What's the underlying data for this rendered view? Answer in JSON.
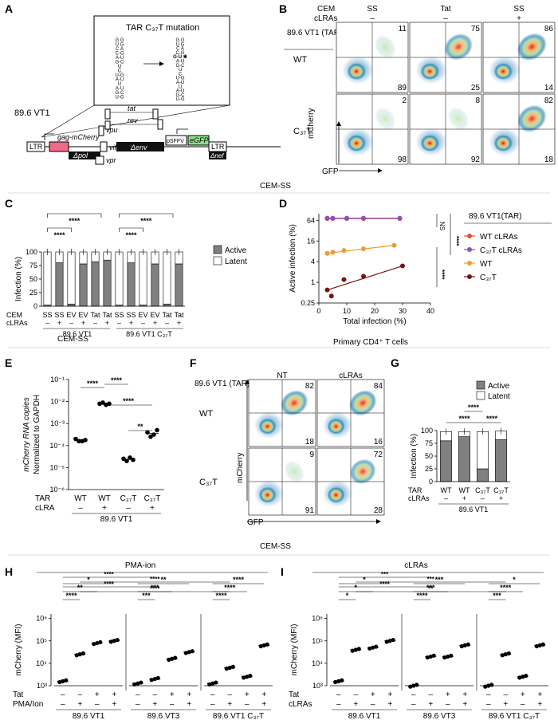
{
  "figure": {
    "panel_labels": [
      "A",
      "B",
      "C",
      "D",
      "E",
      "F",
      "G",
      "H",
      "I"
    ],
    "section_labels": {
      "cem_ss_1": "CEM-SS",
      "cem_ss_2": "CEM-SS",
      "cem_ss_3": "CEM-SS",
      "primary": "Primary CD4⁺ T cells"
    }
  },
  "panelA": {
    "box_title": "TAR C₃₇T mutation",
    "virus_label": "89.6 VT1",
    "genes": {
      "ltr_left": "LTR",
      "gag": "gag-mCherry",
      "pol": "Δpol",
      "vif": "vif",
      "vpu": "vpu",
      "vpr": "vpr",
      "tat": "tat",
      "rev": "rev",
      "env": "Δenv",
      "psffv": "pSFFV",
      "egfp": "eGFP",
      "ltr_right": "LTR",
      "nef": "Δnef"
    },
    "stem_left": [
      "G G",
      "U G",
      "C A",
      "C-G",
      "A-U",
      "G-C",
      "U",
      "C",
      "U-G",
      "A-U",
      "U",
      "A-U",
      "G-C",
      "U-G"
    ],
    "stem_right": [
      "G G",
      "U G",
      "C A",
      "C-G",
      "G·U ✱",
      "A-U",
      "G-C",
      "U",
      "C",
      "U-G",
      "A-U",
      "U",
      "A-U",
      "G-C",
      "U-G"
    ]
  },
  "panelB": {
    "header_cem": "CEM",
    "header_clras": "cLRAs",
    "row_header": "89.6 VT1 (TAR)",
    "columns": [
      {
        "name": "SS",
        "clra": "–"
      },
      {
        "name": "Tat",
        "clra": "–"
      },
      {
        "name": "SS",
        "clra": "+"
      }
    ],
    "rows": [
      {
        "name": "WT",
        "values": [
          {
            "top": "11",
            "bottom": "89"
          },
          {
            "top": "75",
            "bottom": "25"
          },
          {
            "top": "86",
            "bottom": "14"
          }
        ]
      },
      {
        "name": "C₃₇T",
        "values": [
          {
            "top": "2",
            "bottom": "98"
          },
          {
            "top": "8",
            "bottom": "92"
          },
          {
            "top": "82",
            "bottom": "18"
          }
        ]
      }
    ],
    "ylabel": "mCherry",
    "xlabel": "GFP"
  },
  "chart_data": [
    {
      "panel": "C",
      "type": "bar",
      "ylabel": "Infection (%)",
      "yticks": [
        "0",
        "25",
        "50",
        "75",
        "100"
      ],
      "ylim": [
        0,
        100
      ],
      "cem": [
        "SS",
        "SS",
        "EV",
        "EV",
        "Tat",
        "Tat",
        "SS",
        "SS",
        "EV",
        "EV",
        "Tat",
        "Tat"
      ],
      "clras": [
        "–",
        "+",
        "–",
        "+",
        "–",
        "+",
        "–",
        "+",
        "–",
        "+",
        "–",
        "+"
      ],
      "group_labels": [
        "89.6 VT1",
        "89.6 VT1 C₃₇T"
      ],
      "row_labels": [
        "CEM",
        "cLRAs"
      ],
      "series": [
        {
          "name": "Active",
          "values": [
            2,
            80,
            4,
            78,
            82,
            85,
            2,
            80,
            2,
            78,
            4,
            78
          ]
        },
        {
          "name": "Latent",
          "values": [
            98,
            20,
            96,
            22,
            18,
            15,
            98,
            20,
            98,
            22,
            96,
            22
          ]
        }
      ],
      "significance": [
        "****",
        "****",
        "****",
        "****"
      ]
    },
    {
      "panel": "D",
      "type": "scatter",
      "xlabel": "Total infection (%)",
      "ylabel": "Active infection (%)",
      "xticks": [
        "0",
        "10",
        "20",
        "30",
        "40"
      ],
      "yticks": [
        "0.25",
        "1",
        "4",
        "16",
        "64"
      ],
      "legend_title": "89.6 VT1(TAR)",
      "significance": [
        "NS",
        "****",
        "****"
      ],
      "series": [
        {
          "name": "WT cLRAs",
          "color": "#e0532a",
          "x": [
            3,
            5,
            10,
            16,
            29
          ],
          "y": [
            72,
            72,
            72,
            72,
            72
          ]
        },
        {
          "name": "C₃₇T cLRAs",
          "color": "#8a4fc2",
          "x": [
            3,
            5,
            10,
            16,
            29
          ],
          "y": [
            74,
            74,
            74,
            74,
            74
          ]
        },
        {
          "name": "WT",
          "color": "#f29a2e",
          "x": [
            3,
            5,
            9,
            16,
            27
          ],
          "y": [
            7,
            7.5,
            8.5,
            9.5,
            12
          ]
        },
        {
          "name": "C₃₇T",
          "color": "#7a1414",
          "x": [
            3,
            4.5,
            9,
            16,
            30
          ],
          "y": [
            0.6,
            0.4,
            1.2,
            1.5,
            3
          ]
        }
      ]
    },
    {
      "panel": "E",
      "type": "scatter",
      "ylabel": [
        "mCherry RNA copies",
        "Normalized to GAPDH"
      ],
      "yticks": [
        "10⁻⁶",
        "10⁻⁵",
        "10⁻⁴",
        "10⁻³",
        "10⁻²",
        "10⁻¹"
      ],
      "row_labels": [
        "TAR",
        "cLRA"
      ],
      "categories": [
        "WT",
        "WT",
        "C₃₇T",
        "C₃₇T"
      ],
      "clra": [
        "–",
        "+",
        "–",
        "+"
      ],
      "group": "89.6 VT1",
      "log10_values": [
        [
          -3.7,
          -3.8,
          -3.8,
          -3.75
        ],
        [
          -2.1,
          -2.05,
          -2.15,
          -2.1
        ],
        [
          -4.6,
          -4.7,
          -4.55,
          -4.65
        ],
        [
          -3.4,
          -3.6,
          -3.5,
          -3.3
        ]
      ],
      "significance": [
        "****",
        "****",
        "****",
        "**"
      ]
    },
    {
      "panel": "G",
      "type": "bar",
      "ylabel": "Infection (%)",
      "yticks": [
        "0",
        "25",
        "50",
        "75",
        "100"
      ],
      "ylim": [
        0,
        100
      ],
      "categories": [
        "WT",
        "WT",
        "C₃₇T",
        "C₃₇T"
      ],
      "clras": [
        "–",
        "+",
        "–",
        "+"
      ],
      "group": "89.6 VT1",
      "row_labels": [
        "TAR",
        "cLRAs"
      ],
      "series": [
        {
          "name": "Active",
          "values": [
            80,
            88,
            25,
            82
          ]
        },
        {
          "name": "Latent",
          "values": [
            18,
            10,
            73,
            17
          ]
        }
      ],
      "significance": [
        "****",
        "****",
        "****"
      ]
    },
    {
      "panel": "H",
      "type": "scatter",
      "title": "PMA-ion",
      "ylabel": "mCherry (MFI)",
      "yticks": [
        "10³",
        "10⁴",
        "10⁵",
        "10⁶"
      ],
      "row_labels": [
        "Tat",
        "PMA/Ion"
      ],
      "tat": [
        "–",
        "–",
        "+",
        "+"
      ],
      "stim": [
        "–",
        "+",
        "–",
        "+"
      ],
      "groups": [
        {
          "name": "89.6 VT1",
          "log10_values": [
            3.2,
            4.4,
            4.9,
            5.0
          ]
        },
        {
          "name": "89.6 VT3",
          "log10_values": [
            3.1,
            3.3,
            4.2,
            4.5
          ]
        },
        {
          "name": "89.6 VT1 C₃₇T",
          "log10_values": [
            3.1,
            3.8,
            3.4,
            4.8
          ]
        }
      ],
      "significance": [
        "****",
        "**",
        "*",
        "***",
        "***",
        "**",
        "****",
        "****",
        "****",
        "****",
        "****",
        "****",
        "****",
        "****"
      ]
    },
    {
      "panel": "I",
      "type": "scatter",
      "title": "cLRAs",
      "ylabel": "mCherry (MFI)",
      "yticks": [
        "10³",
        "10⁴",
        "10⁵",
        "10⁶"
      ],
      "row_labels": [
        "Tat",
        "cLRAs"
      ],
      "tat": [
        "–",
        "–",
        "+",
        "+"
      ],
      "stim": [
        "–",
        "+",
        "–",
        "+"
      ],
      "groups": [
        {
          "name": "89.6 VT1",
          "log10_values": [
            3.2,
            4.6,
            4.7,
            5.0
          ]
        },
        {
          "name": "89.6 VT3",
          "log10_values": [
            3.0,
            4.3,
            4.3,
            4.8
          ]
        },
        {
          "name": "89.6 VT1 C₃₇T",
          "log10_values": [
            3.0,
            4.4,
            3.4,
            4.8
          ]
        }
      ],
      "significance": [
        "*",
        "*",
        "*",
        "****",
        "***",
        "***",
        "***",
        "****",
        "*",
        "***",
        "***",
        "****",
        "**",
        "**",
        "***"
      ]
    }
  ],
  "panelF": {
    "row_header": "89.6 VT1 (TAR)",
    "columns": [
      "NT",
      "cLRAs"
    ],
    "rows": [
      {
        "name": "WT",
        "values": [
          {
            "top": "82",
            "bottom": "18"
          },
          {
            "top": "84",
            "bottom": "16"
          }
        ]
      },
      {
        "name": "C₃₇T",
        "values": [
          {
            "top": "9",
            "bottom": "91"
          },
          {
            "top": "72",
            "bottom": "28"
          }
        ]
      }
    ],
    "ylabel": "mCherry",
    "xlabel": "GFP"
  }
}
